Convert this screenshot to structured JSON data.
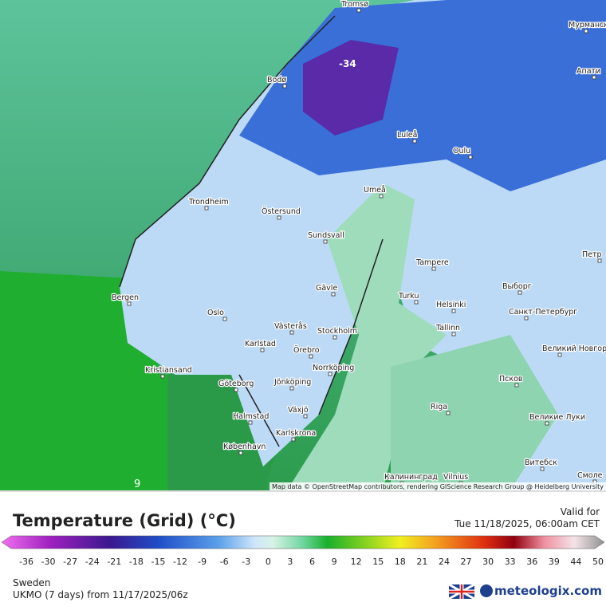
{
  "map": {
    "value_labels": [
      "-34",
      "9"
    ],
    "cities": [
      "Tromsø",
      "Мурманск",
      "Апати",
      "Bodø",
      "Luleå",
      "Oulu",
      "Umeå",
      "Trondheim",
      "Östersund",
      "Sundsvall",
      "Tampere",
      "Петр",
      "Bergen",
      "Gävle",
      "Выборг",
      "Turku",
      "Helsinki",
      "Oslo",
      "Санкт-Петербург",
      "Västerås",
      "Stockholm",
      "Tallinn",
      "Karlstad",
      "Örebro",
      "Великий Новгород",
      "Kristiansand",
      "Norrköping",
      "Псков",
      "Göteborg",
      "Jönköping",
      "Riga",
      "Halmstad",
      "Växjö",
      "Великие Луки",
      "Karlskrona",
      "København",
      "Калининград",
      "Vilnius",
      "Витебск",
      "Смоле"
    ],
    "attribution": "Map data © OpenStreetMap contributors, rendering GIScience Research Group @ Heidelberg University"
  },
  "legend": {
    "title": "Temperature (Grid) (°C)",
    "valid_label": "Valid for",
    "valid_time": "Tue 11/18/2025, 06:00am CET",
    "ticks": [
      -36,
      -30,
      -27,
      -24,
      -21,
      -18,
      -15,
      -12,
      -9,
      -6,
      -3,
      0,
      3,
      6,
      9,
      12,
      15,
      18,
      21,
      24,
      27,
      30,
      33,
      36,
      39,
      44,
      50
    ]
  },
  "footer": {
    "region": "Sweden",
    "model": "UKMO (7 days) from 11/17/2025/06z",
    "brand": "meteologix.com"
  }
}
